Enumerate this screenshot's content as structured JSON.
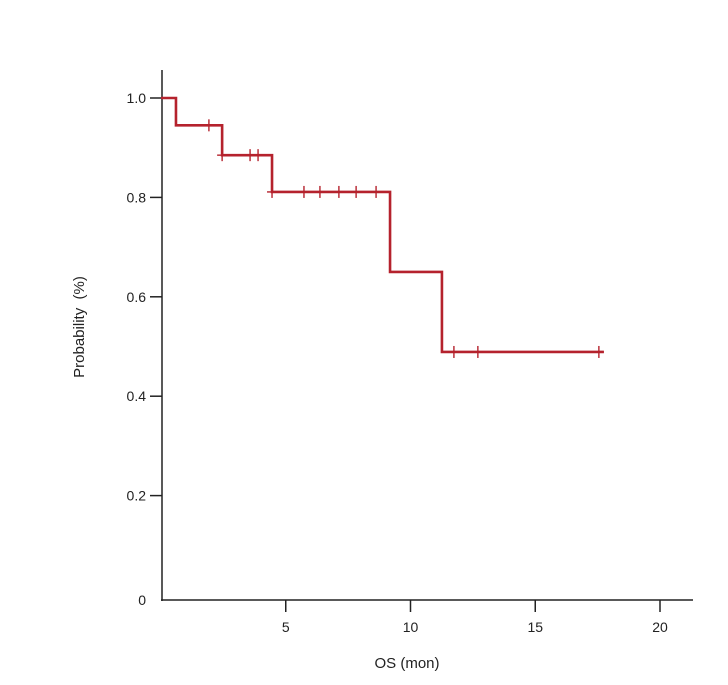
{
  "chart_data": {
    "type": "line",
    "subtype": "kaplan-meier step",
    "title": "",
    "xlabel": "OS (mon)",
    "ylabel": "Probability  (%)",
    "xlim": [
      0,
      21.3
    ],
    "ylim": [
      0,
      1.05
    ],
    "x_ticks": [
      5,
      10,
      15,
      20
    ],
    "x_tick_labels": [
      "5",
      "10",
      "15",
      "20"
    ],
    "y_ticks": [
      0,
      0.2,
      0.4,
      0.6,
      0.8,
      1.0
    ],
    "y_tick_labels": [
      "0",
      "0.2",
      "0.4",
      "0.6",
      "0.8",
      "1.0"
    ],
    "grid": false,
    "color": "#b5222d",
    "steps": [
      {
        "x": 0,
        "y": 1.0
      },
      {
        "x": 0.6,
        "y": 0.945
      },
      {
        "x": 2.45,
        "y": 0.885
      },
      {
        "x": 4.45,
        "y": 0.811
      },
      {
        "x": 9.18,
        "y": 0.65
      },
      {
        "x": 11.26,
        "y": 0.489
      }
    ],
    "end_x": 17.75,
    "censored": [
      1.92,
      2.45,
      3.57,
      3.89,
      4.45,
      5.73,
      6.37,
      7.13,
      7.82,
      8.62,
      11.74,
      12.7,
      17.55
    ]
  }
}
